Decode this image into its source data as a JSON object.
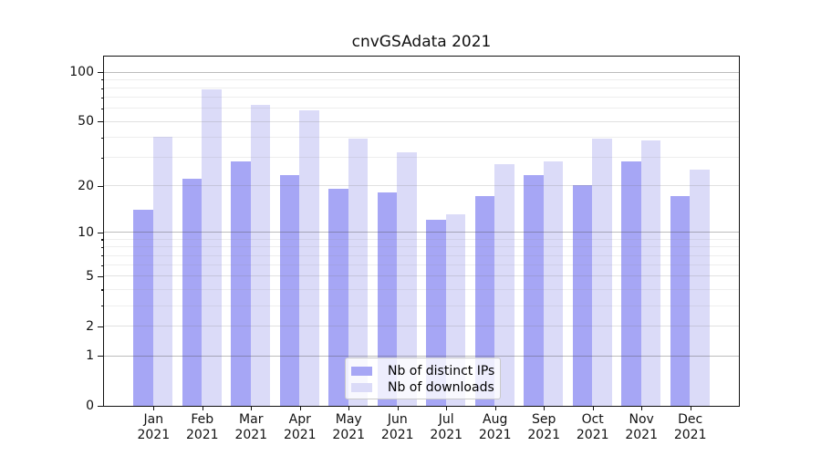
{
  "chart_data": {
    "type": "bar",
    "title": "cnvGSAdata 2021",
    "categories": [
      "Jan 2021",
      "Feb 2021",
      "Mar 2021",
      "Apr 2021",
      "May 2021",
      "Jun 2021",
      "Jul 2021",
      "Aug 2021",
      "Sep 2021",
      "Oct 2021",
      "Nov 2021",
      "Dec 2021"
    ],
    "months": [
      "Jan",
      "Feb",
      "Mar",
      "Apr",
      "May",
      "Jun",
      "Jul",
      "Aug",
      "Sep",
      "Oct",
      "Nov",
      "Dec"
    ],
    "year": "2021",
    "series": [
      {
        "name": "Nb of distinct IPs",
        "color": "#a6a6f5",
        "values": [
          14,
          22,
          28,
          23,
          19,
          18,
          12,
          17,
          23,
          20,
          28,
          17
        ]
      },
      {
        "name": "Nb of downloads",
        "color": "#dbdbf8",
        "values": [
          40,
          78,
          63,
          58,
          39,
          32,
          13,
          27,
          28,
          39,
          38,
          25
        ]
      }
    ],
    "xlabel": "",
    "ylabel": "",
    "y_axis": {
      "scale": "log1p",
      "tick_labels": [
        "100",
        "50",
        "20",
        "10",
        "5",
        "2",
        "1",
        "0"
      ],
      "ticks": [
        100,
        50,
        20,
        10,
        5,
        2,
        1,
        0
      ],
      "minor_ticks": [
        3,
        4,
        6,
        7,
        8,
        9,
        30,
        40,
        60,
        70,
        80,
        90
      ],
      "ylim": [
        0,
        124
      ],
      "grid": "horizontal"
    },
    "legend": {
      "position": "lower center",
      "entries": [
        "Nb of distinct IPs",
        "Nb of downloads"
      ]
    },
    "colors": {
      "background": "#ffffff",
      "axis": "#111111",
      "grid_power10": "#bcbcbc",
      "grid_minor": "#ebebeb",
      "bar_ips": "#a6a6f5",
      "bar_downloads": "#dbdbf8"
    }
  }
}
